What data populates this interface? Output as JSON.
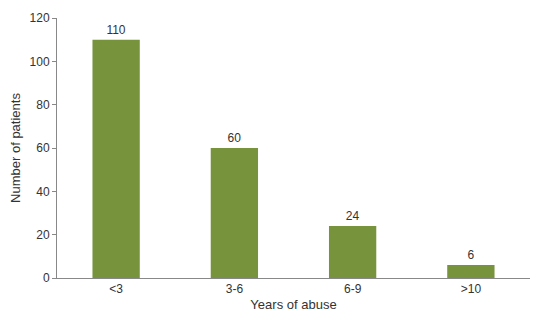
{
  "chart_data": {
    "type": "bar",
    "x_label": "Years of abuse",
    "y_label": "Number of patients",
    "categories": [
      "<3",
      "3-6",
      "6-9",
      ">10"
    ],
    "values": [
      110,
      60,
      24,
      6
    ],
    "color": "#77933c",
    "ylim": [
      0,
      120
    ],
    "yticks": [
      0,
      20,
      40,
      60,
      80,
      100,
      120
    ],
    "grid": false,
    "data_labels": true
  }
}
